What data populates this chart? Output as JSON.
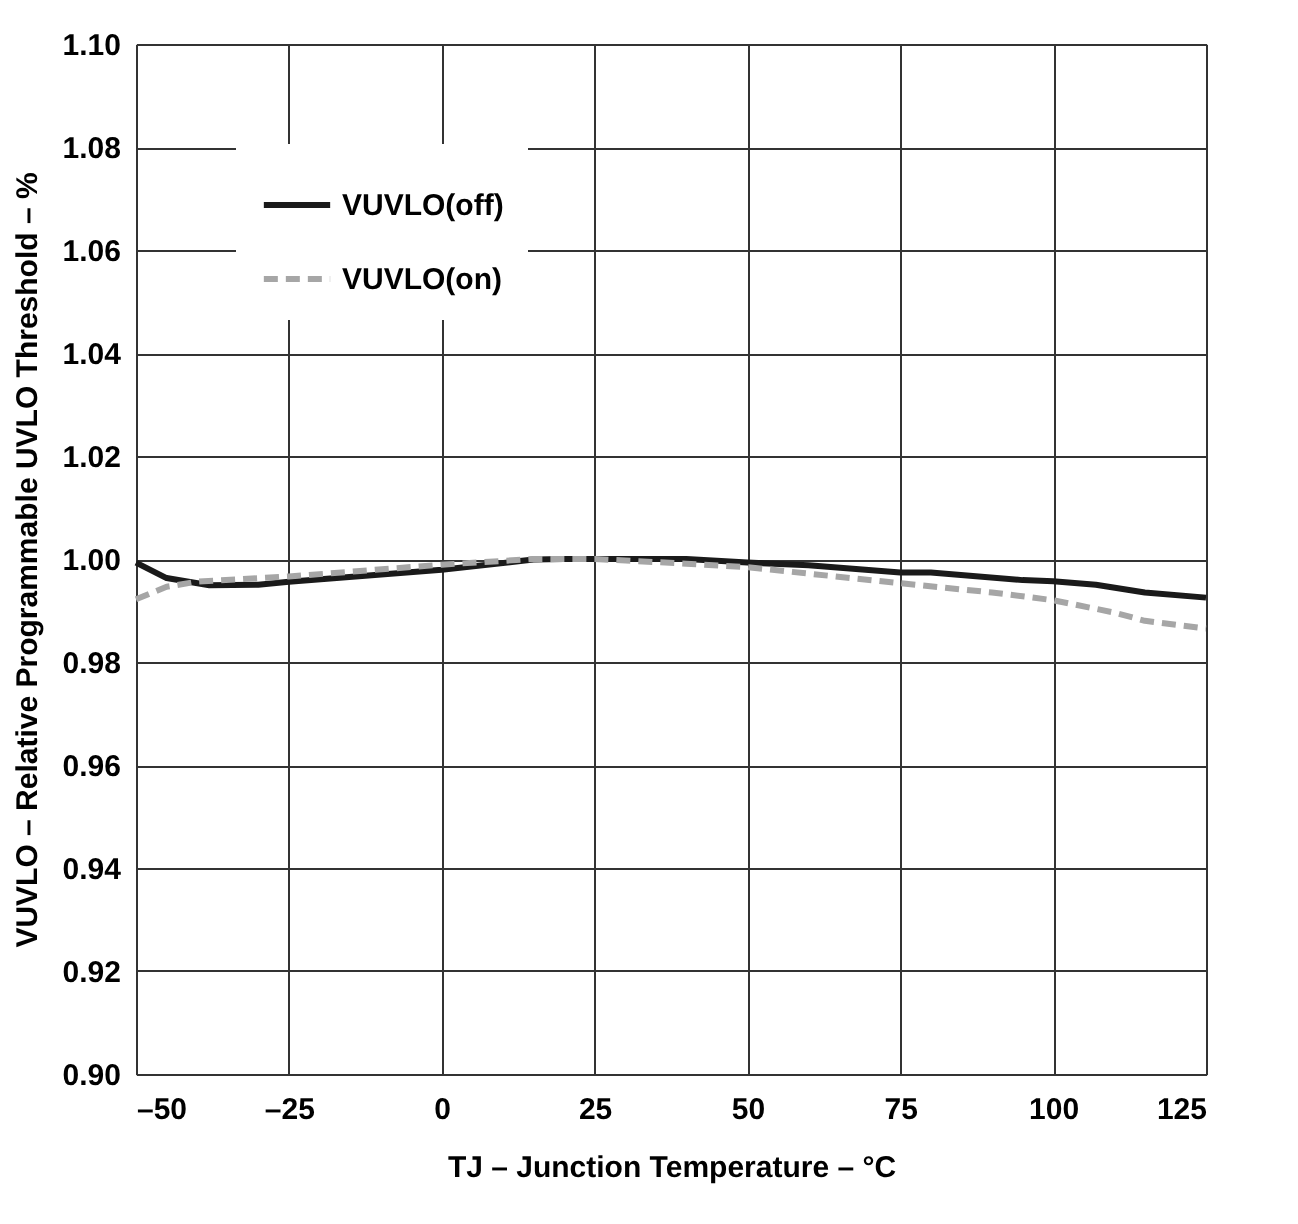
{
  "chart_data": {
    "type": "line",
    "xlabel": "TJ – Junction Temperature – °C",
    "ylabel": "VUVLO – Relative Programmable UVLO Threshold – %",
    "xlim": [
      -50,
      125
    ],
    "xticks": [
      {
        "value": -50,
        "label": "–50"
      },
      {
        "value": -25,
        "label": "–25"
      },
      0,
      25,
      50,
      75,
      100,
      125
    ],
    "ylim": [
      0.9,
      1.1
    ],
    "yticks": [
      {
        "value": 0.9,
        "label": "0.90"
      },
      {
        "value": 0.92,
        "label": "0.92"
      },
      {
        "value": 0.94,
        "label": "0.94"
      },
      {
        "value": 0.96,
        "label": "0.96"
      },
      {
        "value": 0.98,
        "label": "0.98"
      },
      {
        "value": 1.0,
        "label": "1.00"
      },
      {
        "value": 1.02,
        "label": "1.02"
      },
      {
        "value": 1.04,
        "label": "1.04"
      },
      {
        "value": 1.06,
        "label": "1.06"
      },
      {
        "value": 1.08,
        "label": "1.08"
      },
      {
        "value": 1.1,
        "label": "1.10"
      }
    ],
    "grid": true,
    "legend": "top left",
    "marker": "none",
    "series": [
      {
        "name": "VUVLO(off)",
        "color": "#1a1a1a",
        "line_style": "solid",
        "x": [
          -50,
          -45,
          -38,
          -30,
          -25,
          0,
          15,
          20,
          40,
          50,
          60,
          75,
          80,
          95,
          100,
          107,
          115,
          125
        ],
        "values": [
          0.9993,
          0.9963,
          0.9949,
          0.995,
          0.9956,
          0.9979,
          0.9999,
          1.0,
          1.0,
          0.9993,
          0.9988,
          0.9974,
          0.9974,
          0.9959,
          0.9957,
          0.995,
          0.9935,
          0.9925
        ]
      },
      {
        "name": "VUVLO(on)",
        "color": "#a6a6a6",
        "line_style": "dashed",
        "x": [
          -50,
          -45,
          -40,
          -25,
          0,
          15,
          25,
          40,
          50,
          75,
          90,
          100,
          110,
          115,
          125
        ],
        "values": [
          0.9922,
          0.9946,
          0.9956,
          0.9966,
          0.9989,
          1.0,
          1.0,
          0.9991,
          0.9984,
          0.9953,
          0.9935,
          0.992,
          0.9896,
          0.988,
          0.9865
        ]
      }
    ]
  }
}
